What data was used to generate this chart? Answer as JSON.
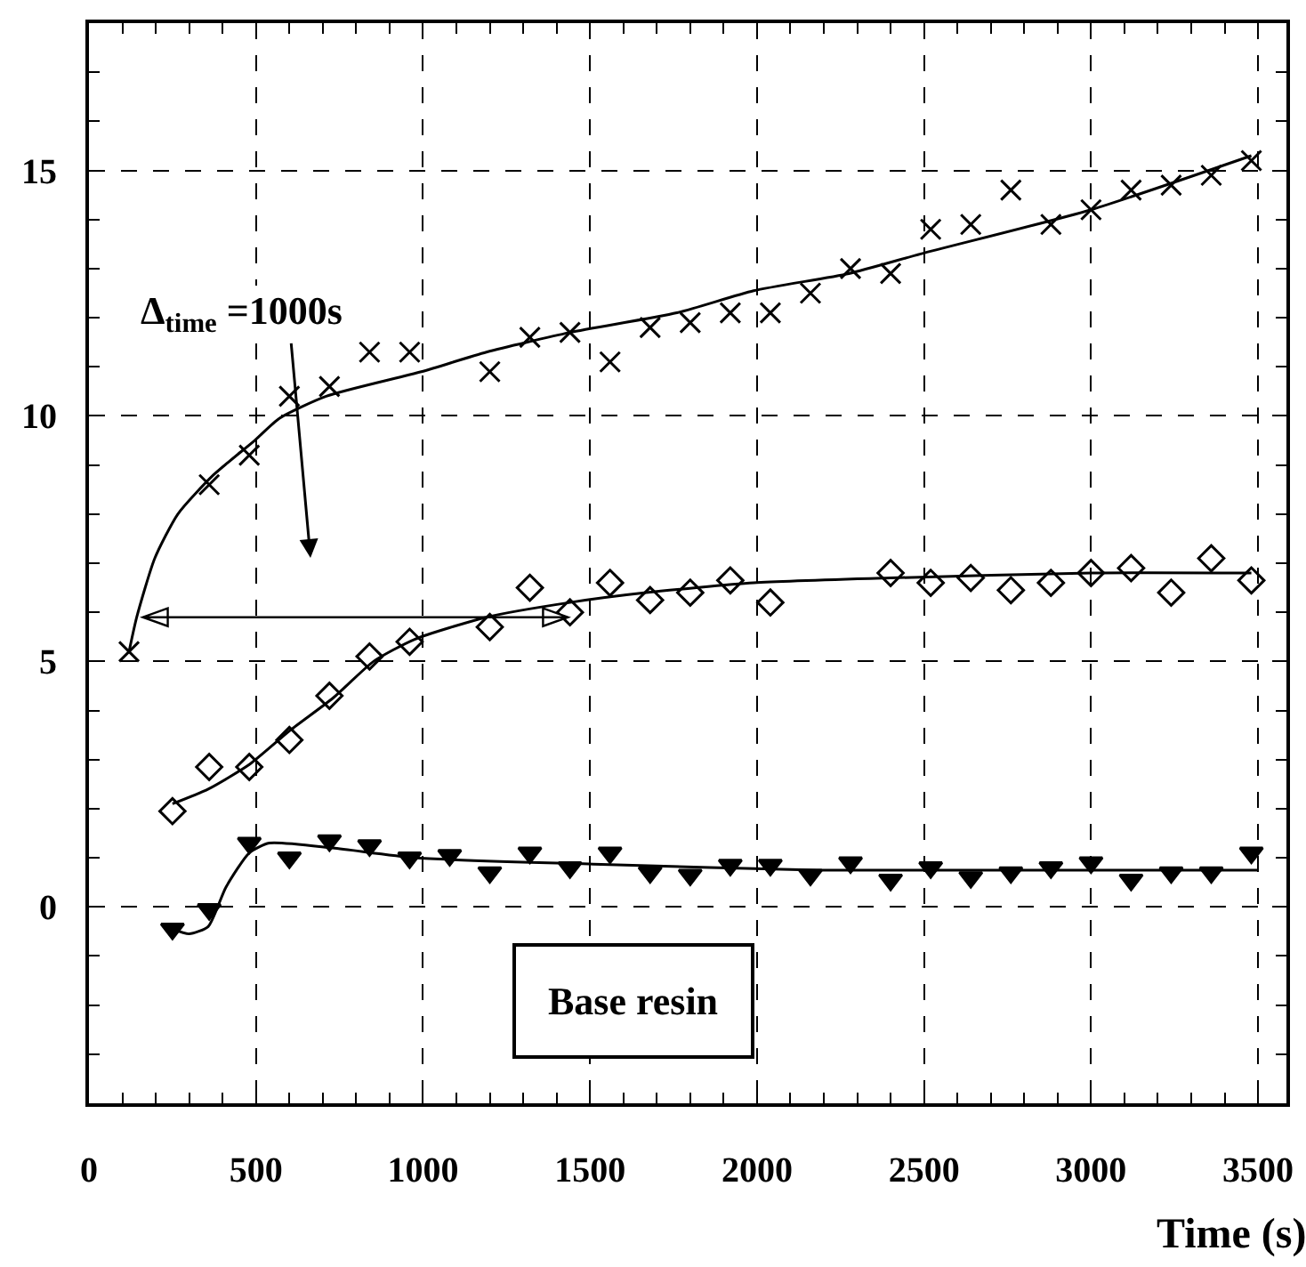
{
  "chart_data": {
    "type": "scatter",
    "xlabel": "Time (s)",
    "xlim": [
      0,
      3585
    ],
    "ylim": [
      -4,
      18
    ],
    "xticks": [
      0,
      500,
      1000,
      1500,
      2000,
      2500,
      3000,
      3500
    ],
    "yticks": [
      0,
      5,
      10,
      15
    ],
    "grid": true,
    "line_style": "dashed",
    "annotations": [
      "Δ$_{time}$ =1000s",
      "Base resin"
    ],
    "series": [
      {
        "marker": "cross",
        "color": "#000000",
        "x": [
          120,
          360,
          480,
          600,
          720,
          840,
          960,
          1200,
          1320,
          1440,
          1560,
          1680,
          1800,
          1920,
          2040,
          2160,
          2280,
          2400,
          2520,
          2640,
          2760,
          2880,
          3000,
          3120,
          3240,
          3360,
          3480
        ],
        "values": [
          5.2,
          8.6,
          9.2,
          10.4,
          10.6,
          11.3,
          11.3,
          10.9,
          11.6,
          11.7,
          11.1,
          11.8,
          11.9,
          12.1,
          12.1,
          12.5,
          13.0,
          12.9,
          13.8,
          13.9,
          14.6,
          13.9,
          14.2,
          14.6,
          14.7,
          14.9,
          15.2
        ]
      },
      {
        "marker": "diamond",
        "color": "#000000",
        "x": [
          250,
          360,
          480,
          600,
          720,
          840,
          960,
          1200,
          1320,
          1440,
          1560,
          1680,
          1800,
          1920,
          2040,
          2400,
          2520,
          2640,
          2760,
          2880,
          3000,
          3120,
          3240,
          3360,
          3480
        ],
        "values": [
          1.95,
          2.85,
          2.85,
          3.4,
          4.3,
          5.1,
          5.4,
          5.7,
          6.5,
          6.0,
          6.6,
          6.25,
          6.4,
          6.65,
          6.2,
          6.8,
          6.6,
          6.7,
          6.45,
          6.6,
          6.8,
          6.9,
          6.4,
          7.1,
          6.65
        ]
      },
      {
        "marker": "triangle",
        "color": "#000000",
        "x": [
          250,
          360,
          480,
          600,
          720,
          840,
          960,
          1080,
          1200,
          1320,
          1440,
          1560,
          1680,
          1800,
          1920,
          2040,
          2160,
          2280,
          2400,
          2520,
          2640,
          2760,
          2880,
          3000,
          3120,
          3240,
          3360,
          3480
        ],
        "values": [
          -0.45,
          -0.05,
          1.3,
          1.0,
          1.35,
          1.25,
          1.0,
          1.05,
          0.7,
          1.1,
          0.8,
          1.1,
          0.7,
          0.65,
          0.85,
          0.85,
          0.65,
          0.9,
          0.55,
          0.8,
          0.6,
          0.7,
          0.8,
          0.9,
          0.55,
          0.7,
          0.7,
          1.1
        ]
      },
      {
        "type": "line",
        "marker": "none",
        "line_style": "solid",
        "color": "#000000",
        "x": [
          120,
          143,
          197,
          266,
          373,
          496,
          570,
          710,
          995,
          1190,
          1440,
          1760,
          1990,
          2275,
          2490,
          3000,
          3480
        ],
        "values": [
          5.2,
          5.9,
          7.1,
          8.0,
          8.8,
          9.5,
          9.95,
          10.4,
          10.9,
          11.3,
          11.7,
          12.1,
          12.55,
          12.9,
          13.3,
          14.2,
          15.3
        ]
      },
      {
        "type": "line",
        "marker": "none",
        "line_style": "solid",
        "color": "#000000",
        "x": [
          250,
          357,
          480,
          603,
          730,
          852,
          975,
          1190,
          1440,
          1668,
          1990,
          2400,
          3000,
          3480
        ],
        "values": [
          2.1,
          2.4,
          2.9,
          3.6,
          4.25,
          5.0,
          5.45,
          5.9,
          6.2,
          6.4,
          6.6,
          6.7,
          6.8,
          6.8
        ]
      },
      {
        "type": "line",
        "marker": "none",
        "line_style": "solid",
        "color": "#000000",
        "x": [
          250,
          300,
          357,
          410,
          480,
          540,
          730,
          975,
          1510,
          2180,
          3500
        ],
        "values": [
          -0.45,
          -0.55,
          -0.4,
          0.4,
          1.1,
          1.3,
          1.2,
          1.0,
          0.87,
          0.75,
          0.75
        ]
      }
    ]
  }
}
